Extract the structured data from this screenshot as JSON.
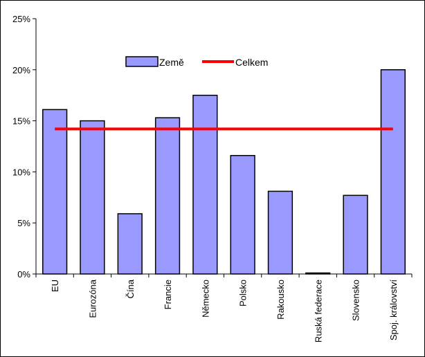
{
  "chart_data": {
    "type": "bar",
    "categories": [
      "EU",
      "Eurozóna",
      "Čína",
      "Francie",
      "Německo",
      "Polsko",
      "Rakousko",
      "Ruská federace",
      "Slovensko",
      "Spoj. království"
    ],
    "series": [
      {
        "name": "Země",
        "type": "bar",
        "values": [
          16.1,
          15.0,
          5.9,
          15.3,
          17.5,
          11.6,
          8.1,
          0.1,
          7.7,
          20.0
        ]
      },
      {
        "name": "Celkem",
        "type": "line",
        "values": [
          14.2,
          14.2,
          14.2,
          14.2,
          14.2,
          14.2,
          14.2,
          14.2,
          14.2,
          14.2
        ]
      }
    ],
    "yticks": [
      "0%",
      "5%",
      "10%",
      "15%",
      "20%",
      "25%"
    ],
    "ylim": [
      0,
      25
    ],
    "grid": false,
    "legend_position": "top-center",
    "colors": {
      "bar_fill": "#9999ff",
      "bar_stroke": "#000000",
      "line": "#ff0000"
    }
  }
}
